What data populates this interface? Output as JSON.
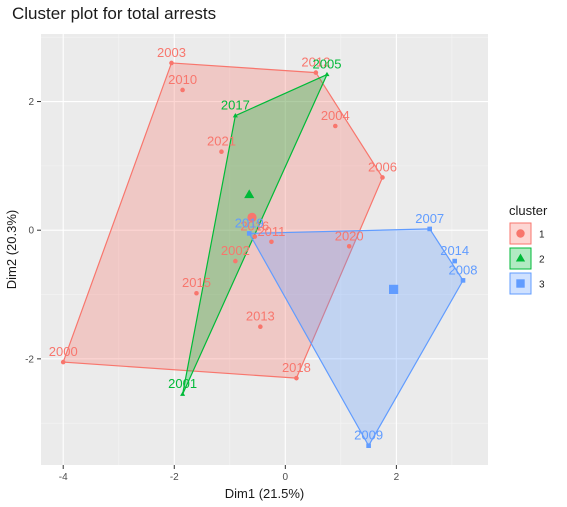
{
  "chart_data": {
    "type": "scatter",
    "title": "Cluster plot for total arrests",
    "xlabel": "Dim1 (21.5%)",
    "ylabel": "Dim2 (20.3%)",
    "xlim": [
      -4.4,
      3.65
    ],
    "ylim": [
      -3.65,
      3.05
    ],
    "xticks": [
      -4,
      -2,
      0,
      2
    ],
    "yticks": [
      -2,
      0,
      2
    ],
    "grid": true,
    "legend": {
      "title": "cluster",
      "position": "right"
    },
    "series": [
      {
        "name": "1",
        "color": "#F8766D",
        "marker": "circle",
        "points": [
          {
            "label": "2000",
            "x": -4.0,
            "y": -2.05
          },
          {
            "label": "2002",
            "x": -0.9,
            "y": -0.48
          },
          {
            "label": "2003",
            "x": -2.05,
            "y": 2.6
          },
          {
            "label": "2004",
            "x": 0.9,
            "y": 1.62
          },
          {
            "label": "2006",
            "x": 1.75,
            "y": 0.82
          },
          {
            "label": "2010",
            "x": -1.85,
            "y": 2.18
          },
          {
            "label": "2011",
            "x": -0.25,
            "y": -0.18
          },
          {
            "label": "2012",
            "x": 0.55,
            "y": 2.45
          },
          {
            "label": "2013",
            "x": -0.45,
            "y": -1.5
          },
          {
            "label": "2015",
            "x": -1.6,
            "y": -0.98
          },
          {
            "label": "2016",
            "x": -0.55,
            "y": -0.1
          },
          {
            "label": "2018",
            "x": 0.2,
            "y": -2.3
          },
          {
            "label": "2020",
            "x": 1.15,
            "y": -0.25
          },
          {
            "label": "2021",
            "x": -1.15,
            "y": 1.22
          }
        ],
        "centroid": {
          "x": -0.6,
          "y": 0.2
        },
        "hull": [
          "2003",
          "2012",
          "2006",
          "2018",
          "2000"
        ]
      },
      {
        "name": "2",
        "color": "#00BA38",
        "marker": "triangle",
        "points": [
          {
            "label": "2001",
            "x": -1.85,
            "y": -2.55
          },
          {
            "label": "2005",
            "x": 0.75,
            "y": 2.42
          },
          {
            "label": "2017",
            "x": -0.9,
            "y": 1.78
          }
        ],
        "centroid": {
          "x": -0.65,
          "y": 0.55
        },
        "hull": [
          "2001",
          "2017",
          "2005"
        ]
      },
      {
        "name": "3",
        "color": "#619CFF",
        "marker": "square",
        "points": [
          {
            "label": "2007",
            "x": 2.6,
            "y": 0.02
          },
          {
            "label": "2008",
            "x": 3.2,
            "y": -0.78
          },
          {
            "label": "2009",
            "x": 1.5,
            "y": -3.35
          },
          {
            "label": "2014",
            "x": 3.05,
            "y": -0.48
          },
          {
            "label": "2019",
            "x": -0.65,
            "y": -0.05
          }
        ],
        "centroid": {
          "x": 1.95,
          "y": -0.92
        },
        "hull": [
          "2019",
          "2007",
          "2008",
          "2009"
        ]
      }
    ]
  }
}
